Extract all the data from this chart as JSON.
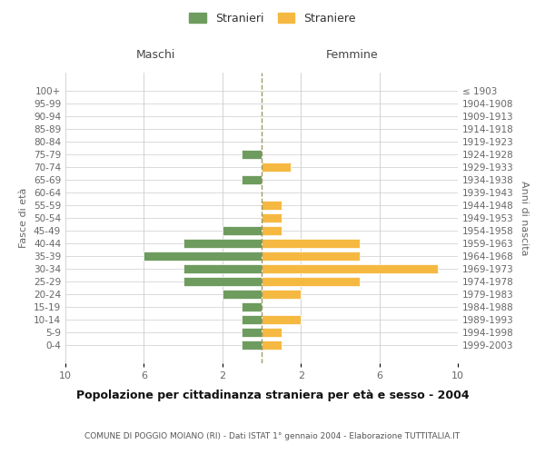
{
  "age_groups": [
    "100+",
    "95-99",
    "90-94",
    "85-89",
    "80-84",
    "75-79",
    "70-74",
    "65-69",
    "60-64",
    "55-59",
    "50-54",
    "45-49",
    "40-44",
    "35-39",
    "30-34",
    "25-29",
    "20-24",
    "15-19",
    "10-14",
    "5-9",
    "0-4"
  ],
  "birth_years": [
    "≤ 1903",
    "1904-1908",
    "1909-1913",
    "1914-1918",
    "1919-1923",
    "1924-1928",
    "1929-1933",
    "1934-1938",
    "1939-1943",
    "1944-1948",
    "1949-1953",
    "1954-1958",
    "1959-1963",
    "1964-1968",
    "1969-1973",
    "1974-1978",
    "1979-1983",
    "1984-1988",
    "1989-1993",
    "1994-1998",
    "1999-2003"
  ],
  "maschi": [
    0,
    0,
    0,
    0,
    0,
    1,
    0,
    1,
    0,
    0,
    0,
    2,
    4,
    6,
    4,
    4,
    2,
    1,
    1,
    1,
    1
  ],
  "femmine": [
    0,
    0,
    0,
    0,
    0,
    0,
    1.5,
    0,
    0,
    1,
    1,
    1,
    5,
    5,
    9,
    5,
    2,
    0,
    2,
    1,
    1
  ],
  "color_maschi": "#6e9c5e",
  "color_femmine": "#f5b942",
  "xlim": 10,
  "title": "Popolazione per cittadinanza straniera per età e sesso - 2004",
  "subtitle": "COMUNE DI POGGIO MOIANO (RI) - Dati ISTAT 1° gennaio 2004 - Elaborazione TUTTITALIA.IT",
  "ylabel_left": "Fasce di età",
  "ylabel_right": "Anni di nascita",
  "label_maschi": "Stranieri",
  "label_femmine": "Straniere",
  "header_maschi": "Maschi",
  "header_femmine": "Femmine",
  "background_color": "#ffffff",
  "grid_color": "#cccccc",
  "xtick_labels": [
    "10",
    "6",
    "2",
    "2",
    "6",
    "10"
  ],
  "xtick_vals": [
    -10,
    -6,
    -2,
    2,
    6,
    10
  ]
}
